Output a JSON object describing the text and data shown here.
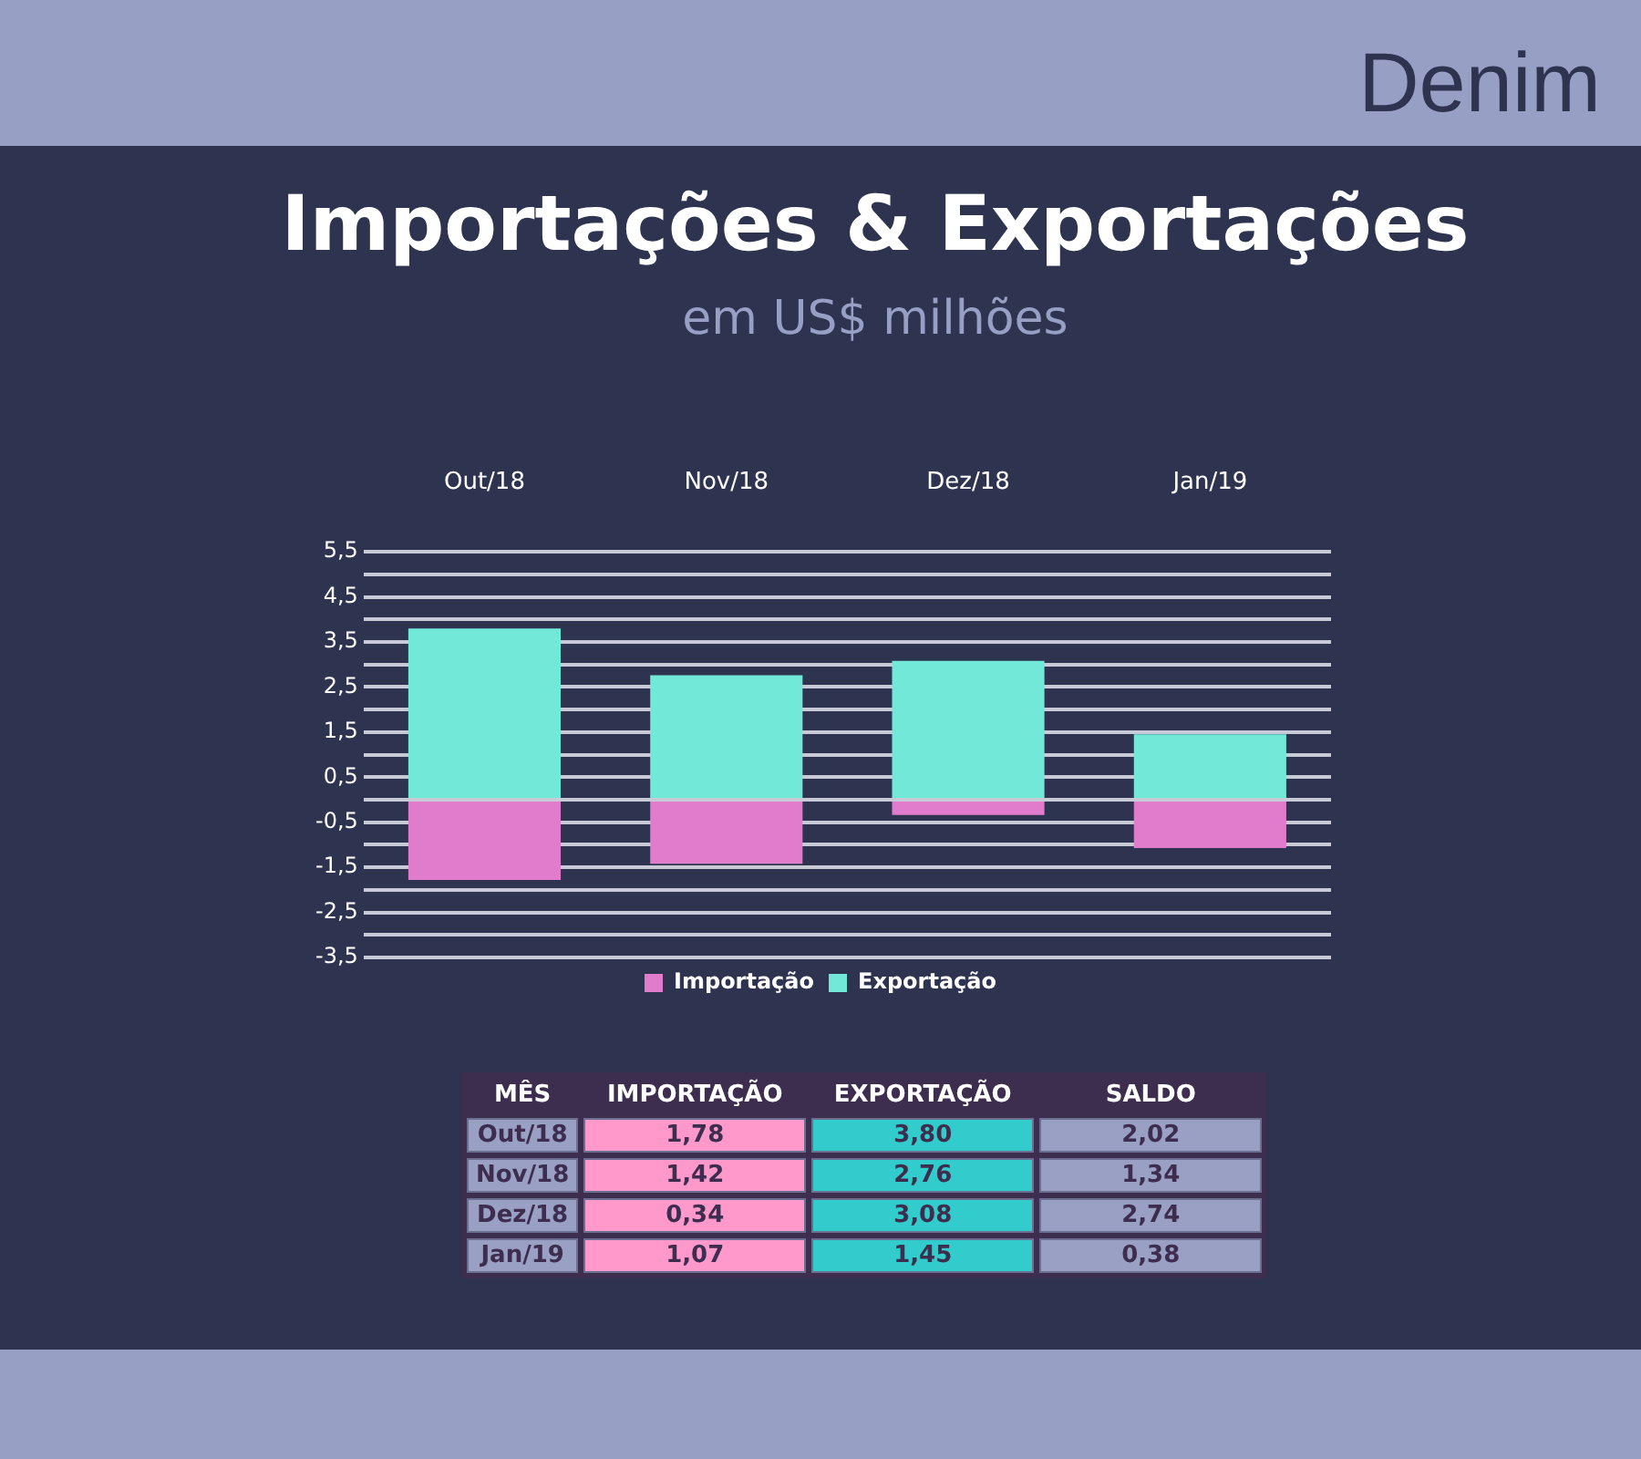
{
  "chart_data": [
    {
      "type": "bar",
      "title": "Importações & Exportações",
      "subtitle": "em US$ milhões",
      "annotations": [
        "Denim"
      ],
      "categories": [
        "Out/18",
        "Nov/18",
        "Dez/18",
        "Jan/19"
      ],
      "series": [
        {
          "name": "Importação",
          "color": "#e17ccd",
          "values": [
            -1.78,
            -1.42,
            -0.34,
            -1.07
          ]
        },
        {
          "name": "Exportação",
          "color": "#72e8d9",
          "values": [
            3.8,
            2.76,
            3.08,
            1.45
          ]
        }
      ],
      "stacked": true,
      "ylim": [
        -3.5,
        5.5
      ],
      "yticks": [
        {
          "value": -3.5,
          "label": "-3,5"
        },
        {
          "value": -3,
          "label": null
        },
        {
          "value": -2.5,
          "label": "-2,5"
        },
        {
          "value": -2,
          "label": null
        },
        {
          "value": -1.5,
          "label": "-1,5"
        },
        {
          "value": -1,
          "label": null
        },
        {
          "value": -0.5,
          "label": "-0,5"
        },
        {
          "value": 0,
          "label": null
        },
        {
          "value": 0.5,
          "label": "0,5"
        },
        {
          "value": 1,
          "label": null
        },
        {
          "value": 1.5,
          "label": "1,5"
        },
        {
          "value": 2,
          "label": null
        },
        {
          "value": 2.5,
          "label": "2,5"
        },
        {
          "value": 3,
          "label": null
        },
        {
          "value": 3.5,
          "label": "3,5"
        },
        {
          "value": 4,
          "label": null
        },
        {
          "value": 4.5,
          "label": "4,5"
        },
        {
          "value": 5,
          "label": null
        },
        {
          "value": 5.5,
          "label": "5,5"
        }
      ],
      "grid": "y",
      "legend": "bottom"
    },
    {
      "type": "other",
      "xlabel": "MÊS",
      "categories": [
        "Out/18",
        "Nov/18",
        "Dez/18",
        "Jan/19"
      ],
      "color": "#9a9fc4",
      "series": [
        {
          "name": "IMPORTAÇÃO",
          "color": "#ff99cc",
          "values": [
            1.78,
            1.42,
            0.34,
            1.07
          ],
          "value_labels": [
            "1,78",
            "1,42",
            "0,34",
            "1,07"
          ]
        },
        {
          "name": "EXPORTAÇÃO",
          "color": "#33cccc",
          "values": [
            3.8,
            2.76,
            3.08,
            1.45
          ],
          "value_labels": [
            "3,80",
            "2,76",
            "3,08",
            "1,45"
          ]
        },
        {
          "name": "SALDO",
          "color": "#9a9fc4",
          "values": [
            2.02,
            1.34,
            2.74,
            0.38
          ],
          "value_labels": [
            "2,02",
            "1,34",
            "2,74",
            "0,38"
          ]
        }
      ]
    }
  ]
}
